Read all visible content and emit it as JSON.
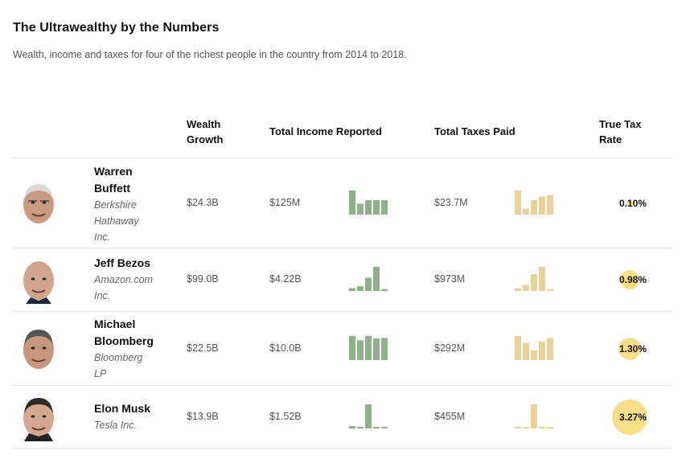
{
  "title": "The Ultrawealthy by the Numbers",
  "subtitle": "Wealth, income and taxes for four of the richest people in the country from 2014 to 2018.",
  "headers": {
    "wealth_line1": "Wealth",
    "wealth_line2": "Growth",
    "income": "Total Income Reported",
    "taxes": "Total Taxes Paid",
    "rate_line1": "True Tax",
    "rate_line2": "Rate"
  },
  "colors": {
    "income_bars": "#8fb08a",
    "tax_bars": "#e8d49a",
    "rate_circle": "#f6df86"
  },
  "chart_data": {
    "type": "table",
    "columns": [
      "Wealth Growth",
      "Total Income Reported",
      "Total Taxes Paid",
      "True Tax Rate"
    ],
    "rows": [
      {
        "name_lines": [
          "Warren",
          "Buffett"
        ],
        "company_lines": [
          "Berkshire",
          "Hathaway",
          "Inc."
        ],
        "avatar_icon": "warren-buffett-portrait",
        "wealth_growth": "$24.3B",
        "income": "$125M",
        "taxes": "$23.7M",
        "true_tax_rate": "0.10%",
        "rate_value": 0.1,
        "income_sparkline": [
          1.0,
          0.45,
          0.6,
          0.6,
          0.6
        ],
        "taxes_sparkline": [
          1.0,
          0.25,
          0.6,
          0.75,
          0.8
        ]
      },
      {
        "name_lines": [
          "Jeff Bezos"
        ],
        "company_lines": [
          "Amazon.com",
          "Inc."
        ],
        "avatar_icon": "jeff-bezos-portrait",
        "wealth_growth": "$99.0B",
        "income": "$4.22B",
        "taxes": "$973M",
        "true_tax_rate": "0.98%",
        "rate_value": 0.98,
        "income_sparkline": [
          0.12,
          0.2,
          0.55,
          1.0,
          0.08
        ],
        "taxes_sparkline": [
          0.12,
          0.25,
          0.7,
          1.0,
          0.08
        ]
      },
      {
        "name_lines": [
          "Michael",
          "Bloomberg"
        ],
        "company_lines": [
          "Bloomberg",
          "LP"
        ],
        "avatar_icon": "michael-bloomberg-portrait",
        "wealth_growth": "$22.5B",
        "income": "$10.0B",
        "taxes": "$292M",
        "true_tax_rate": "1.30%",
        "rate_value": 1.3,
        "income_sparkline": [
          1.0,
          0.82,
          1.0,
          0.9,
          0.92
        ],
        "taxes_sparkline": [
          1.0,
          0.72,
          0.4,
          0.78,
          0.92
        ]
      },
      {
        "name_lines": [
          "Elon Musk"
        ],
        "company_lines": [
          "Tesla Inc."
        ],
        "avatar_icon": "elon-musk-portrait",
        "wealth_growth": "$13.9B",
        "income": "$1.52B",
        "taxes": "$455M",
        "true_tax_rate": "3.27%",
        "rate_value": 3.27,
        "income_sparkline": [
          0.1,
          0.03,
          1.0,
          0.03,
          0.03
        ],
        "taxes_sparkline": [
          0.03,
          0.03,
          1.0,
          0.03,
          0.03
        ]
      }
    ]
  }
}
